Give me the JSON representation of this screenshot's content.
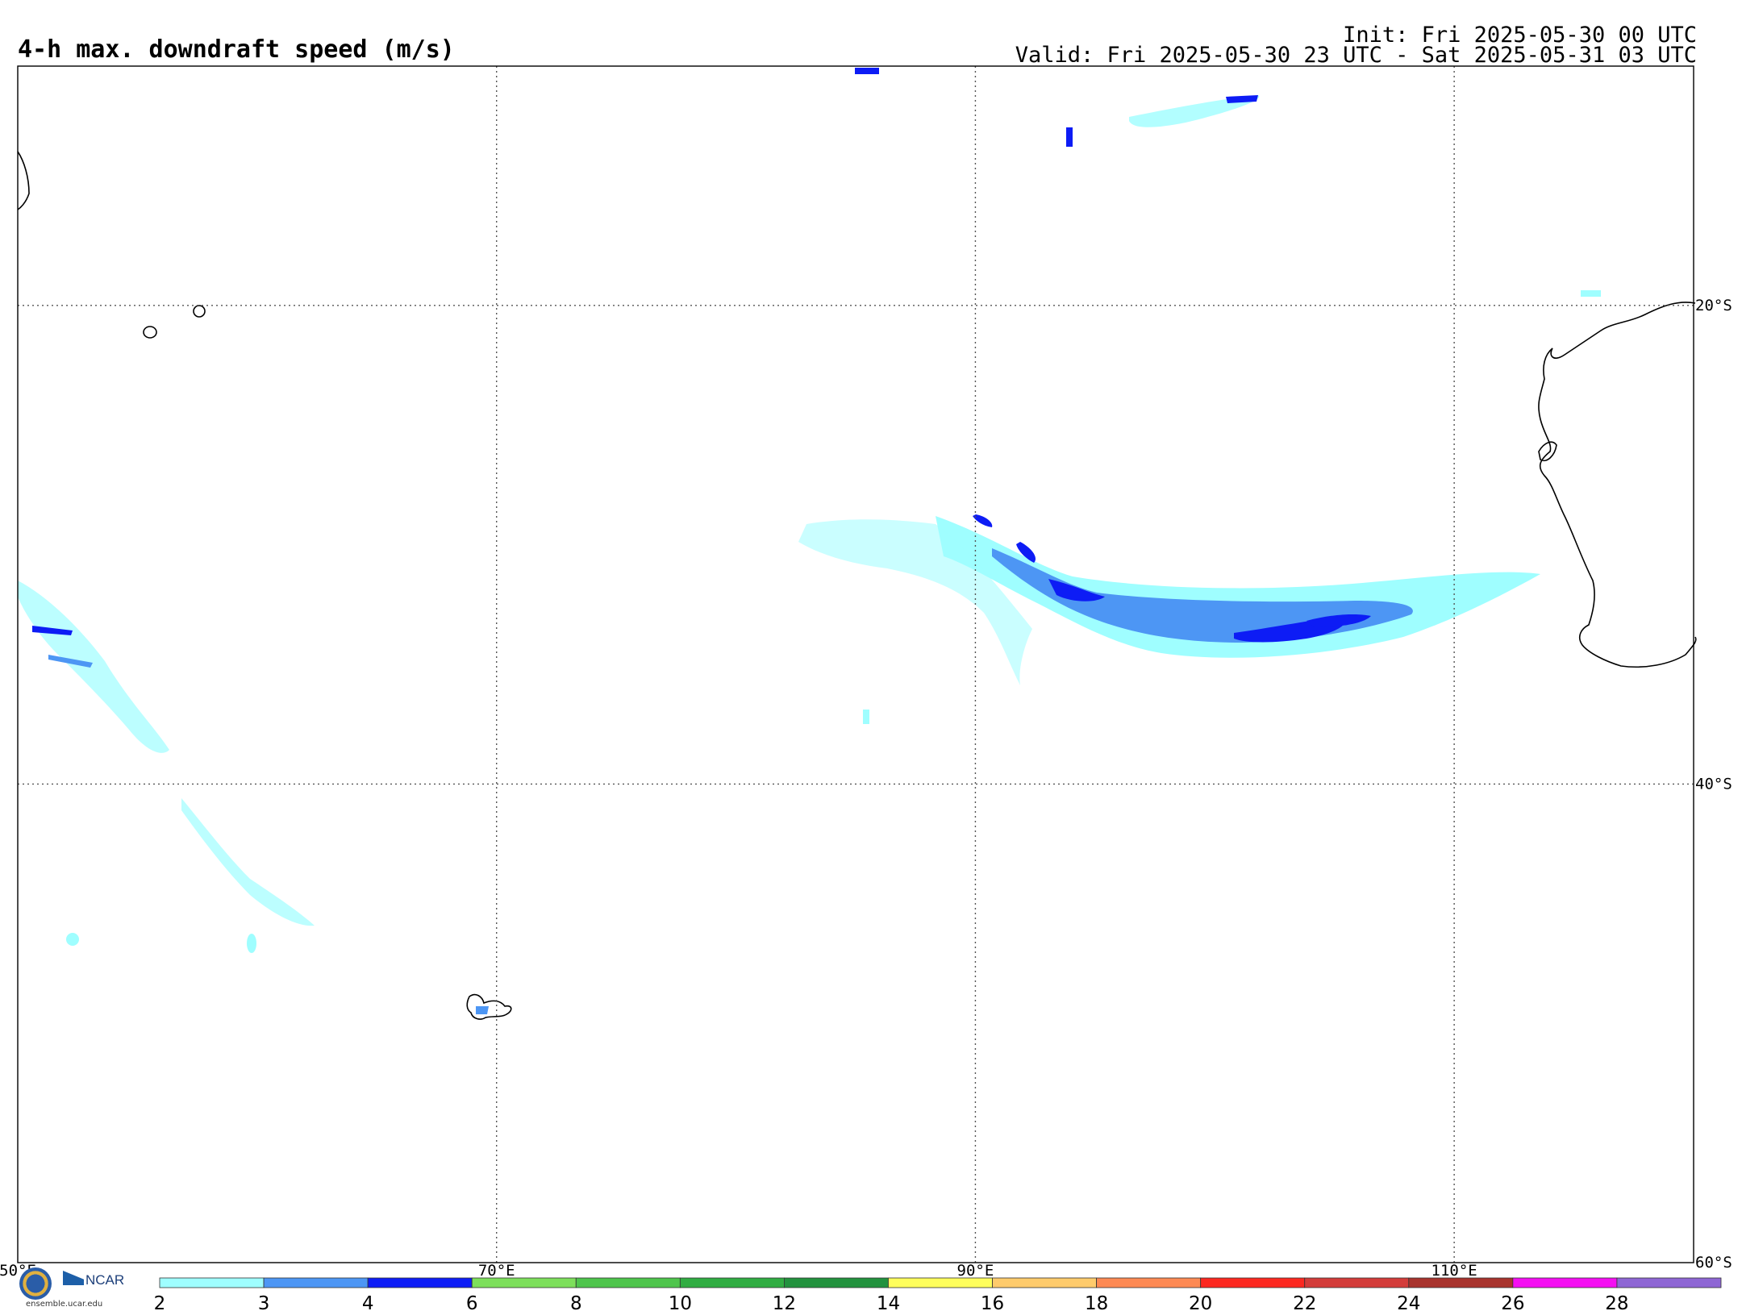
{
  "header": {
    "title": "4-h max. downdraft speed (m/s)",
    "init": "Init: Fri 2025-05-30 00 UTC",
    "valid": "Valid: Fri 2025-05-30 23 UTC - Sat 2025-05-31 03 UTC"
  },
  "map": {
    "lon_labels": [
      "50°E",
      "70°E",
      "90°E",
      "110°E"
    ],
    "lat_labels": [
      "20°S",
      "40°S",
      "60°S"
    ],
    "lon_range": [
      50,
      120
    ],
    "lat_range": [
      -10,
      -60
    ],
    "grid_lon": [
      70,
      90,
      110
    ],
    "grid_lat": [
      -20,
      -40
    ]
  },
  "colorbar": {
    "ticks": [
      "2",
      "3",
      "4",
      "6",
      "8",
      "10",
      "12",
      "14",
      "16",
      "18",
      "20",
      "22",
      "24",
      "26",
      "28"
    ],
    "colors": [
      "#9ffeff",
      "#4d96f4",
      "#0d1cf5",
      "#7ddf5b",
      "#4ec54c",
      "#30ad42",
      "#22923e",
      "#fefe5c",
      "#fecb6c",
      "#fd8953",
      "#fc2820",
      "#d33c3a",
      "#a8332d",
      "#f40ef2",
      "#8e66d4"
    ]
  },
  "logo": {
    "org": "NCAR",
    "site": "ensemble.ucar.edu"
  },
  "legend_colors": {
    "light": "#9ffeff",
    "mid": "#4d96f4",
    "dark": "#0d1cf5"
  }
}
